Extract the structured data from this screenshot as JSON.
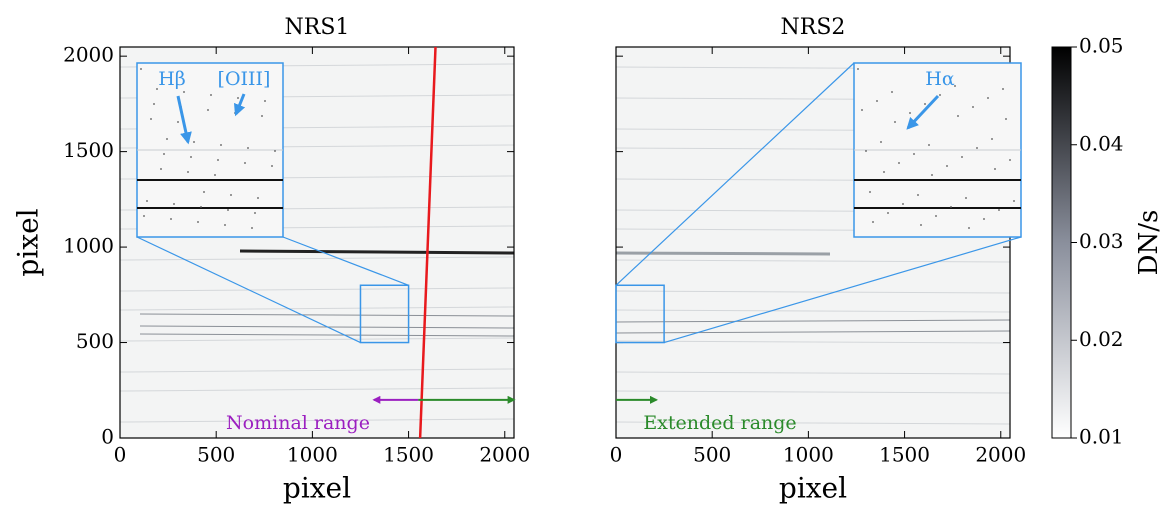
{
  "chart_data": [
    {
      "type": "image",
      "title": "NRS1",
      "xlabel": "pixel",
      "ylabel": "pixel",
      "xlim": [
        0,
        2048
      ],
      "ylim": [
        0,
        2048
      ],
      "xticks": [
        0,
        500,
        1000,
        1500,
        2000
      ],
      "yticks": [
        0,
        500,
        1000,
        1500,
        2000
      ],
      "ytick_labels": true,
      "zoom_box": {
        "x": [
          1250,
          1500
        ],
        "y": [
          500,
          800
        ],
        "color": "#3a96e8"
      },
      "line": {
        "x": [
          1560,
          1640
        ],
        "y": [
          0,
          2048
        ],
        "color": "#e8191d"
      },
      "arrows": [
        {
          "x": [
            1550,
            1320
          ],
          "y": 200,
          "color": "#9b1fc0"
        },
        {
          "x": [
            1550,
            2048
          ],
          "y": 200,
          "color": "#2a8a2a"
        }
      ],
      "annotations": [
        "Hβ",
        "[OIII]",
        "Nominal range"
      ]
    },
    {
      "type": "image",
      "title": "NRS2",
      "xlabel": "pixel",
      "xlim": [
        0,
        2048
      ],
      "ylim": [
        0,
        2048
      ],
      "xticks": [
        0,
        500,
        1000,
        1500,
        2000
      ],
      "yticks": [
        0,
        500,
        1000,
        1500,
        2000
      ],
      "ytick_labels": false,
      "zoom_box": {
        "x": [
          0,
          250
        ],
        "y": [
          500,
          800
        ],
        "color": "#3a96e8"
      },
      "arrows": [
        {
          "x": [
            0,
            210
          ],
          "y": 200,
          "color": "#2a8a2a"
        }
      ],
      "annotations": [
        "Hα",
        "Extended range"
      ]
    },
    {
      "type": "colorbar",
      "label": "DN/s",
      "lim": [
        0.01,
        0.05
      ],
      "ticks": [
        0.01,
        0.02,
        0.03,
        0.04,
        0.05
      ],
      "colors": [
        "#ffffff",
        "#000000"
      ]
    }
  ]
}
